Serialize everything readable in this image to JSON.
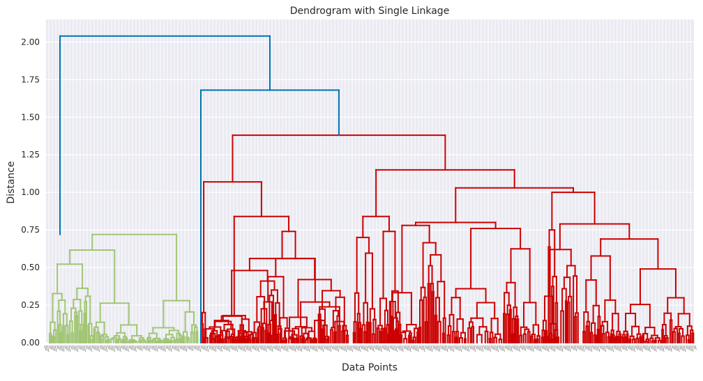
{
  "chart_data": {
    "type": "dendrogram",
    "title": "Dendrogram with Single Linkage",
    "xlabel": "Data Points",
    "ylabel": "Distance",
    "ylim": [
      0,
      2.15
    ],
    "yticks": [
      0.0,
      0.25,
      0.5,
      0.75,
      1.0,
      1.25,
      1.5,
      1.75,
      2.0
    ],
    "grid": true,
    "leaf_labels_dense": true,
    "colors": {
      "above_threshold": "#0072b2",
      "cluster_1": "#a1c574",
      "cluster_2": "#cc0000",
      "background": "#eaeaf2",
      "grid": "#ffffff"
    },
    "merges": [
      {
        "name": "root",
        "height": 2.04,
        "color": "above_threshold"
      },
      {
        "name": "upper",
        "height": 1.68,
        "color": "above_threshold"
      },
      {
        "name": "red-top",
        "height": 1.38,
        "color": "cluster_2"
      },
      {
        "name": "red-left",
        "height": 1.07,
        "color": "cluster_2"
      },
      {
        "name": "red-right",
        "height": 1.15,
        "color": "cluster_2"
      },
      {
        "name": "red-right-b",
        "height": 1.03,
        "color": "cluster_2"
      },
      {
        "name": "red-right-c",
        "height": 1.0,
        "color": "cluster_2"
      },
      {
        "name": "red-left-b",
        "height": 0.84,
        "color": "cluster_2"
      },
      {
        "name": "red-mid",
        "height": 0.84,
        "color": "cluster_2"
      },
      {
        "name": "red-right-d",
        "height": 0.79,
        "color": "cluster_2"
      },
      {
        "name": "red-left-c",
        "height": 0.74,
        "color": "cluster_2"
      },
      {
        "name": "red-right-e",
        "height": 0.69,
        "color": "cluster_2"
      },
      {
        "name": "green-top",
        "height": 0.72,
        "color": "cluster_1"
      }
    ]
  }
}
